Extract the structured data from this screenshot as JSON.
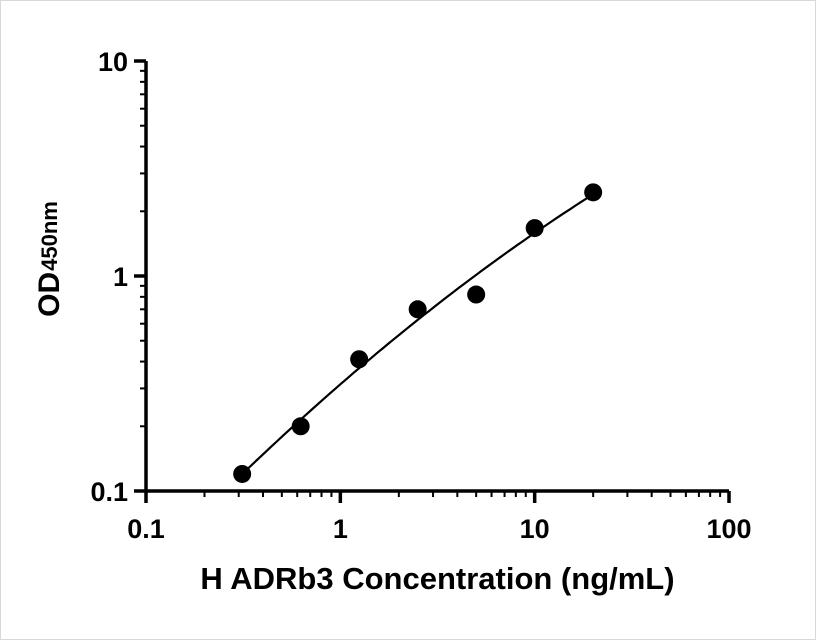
{
  "chart_data": {
    "type": "scatter",
    "title": "",
    "xlabel": "H ADRb3 Concentration (ng/mL)",
    "ylabel_main": "OD",
    "ylabel_sub": "450nm",
    "x_scale": "log",
    "y_scale": "log",
    "xlim": [
      0.1,
      100
    ],
    "ylim": [
      0.1,
      10
    ],
    "x_ticks": [
      0.1,
      1,
      10,
      100
    ],
    "x_tick_labels": [
      "0.1",
      "1",
      "10",
      "100"
    ],
    "y_ticks": [
      0.1,
      1,
      10
    ],
    "y_tick_labels": [
      "0.1",
      "1",
      "10"
    ],
    "x": [
      0.3125,
      0.625,
      1.25,
      2.5,
      5,
      10,
      20
    ],
    "y": [
      0.12,
      0.2,
      0.41,
      0.7,
      0.82,
      1.67,
      2.45
    ],
    "series_name": "standard-curve",
    "marker_color": "#000000",
    "line_color": "#000000",
    "axis_color": "#000000",
    "grid": false,
    "legend": "none",
    "fit": "quadratic-loglog"
  }
}
